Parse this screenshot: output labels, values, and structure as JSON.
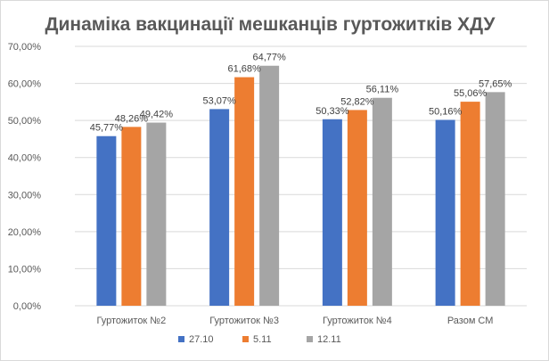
{
  "chart_data": {
    "type": "bar",
    "title": "Динаміка вакцинації мешканців гуртожитків ХДУ",
    "categories": [
      "Гуртожиток №2",
      "Гуртожиток №3",
      "Гуртожиток №4",
      "Разом СМ"
    ],
    "series": [
      {
        "name": "27.10",
        "color": "#4472C4",
        "values": [
          45.77,
          53.07,
          50.33,
          50.16
        ],
        "labels": [
          "45,77%",
          "53,07%",
          "50,33%",
          "50,16%"
        ]
      },
      {
        "name": "5.11",
        "color": "#ED7D31",
        "values": [
          48.26,
          61.68,
          52.82,
          55.06
        ],
        "labels": [
          "48,26%",
          "61,68%",
          "52,82%",
          "55,06%"
        ]
      },
      {
        "name": "12.11",
        "color": "#A5A5A5",
        "values": [
          49.42,
          64.77,
          56.11,
          57.65
        ],
        "labels": [
          "49,42%",
          "64,77%",
          "56,11%",
          "57,65%"
        ]
      }
    ],
    "ylim": [
      0,
      70
    ],
    "yticks": [
      0,
      10,
      20,
      30,
      40,
      50,
      60,
      70
    ],
    "ytick_labels": [
      "0,00%",
      "10,00%",
      "20,00%",
      "30,00%",
      "40,00%",
      "50,00%",
      "60,00%",
      "70,00%"
    ],
    "grid": true,
    "gridline_color": "#d9d9d9",
    "legend_position": "bottom"
  }
}
